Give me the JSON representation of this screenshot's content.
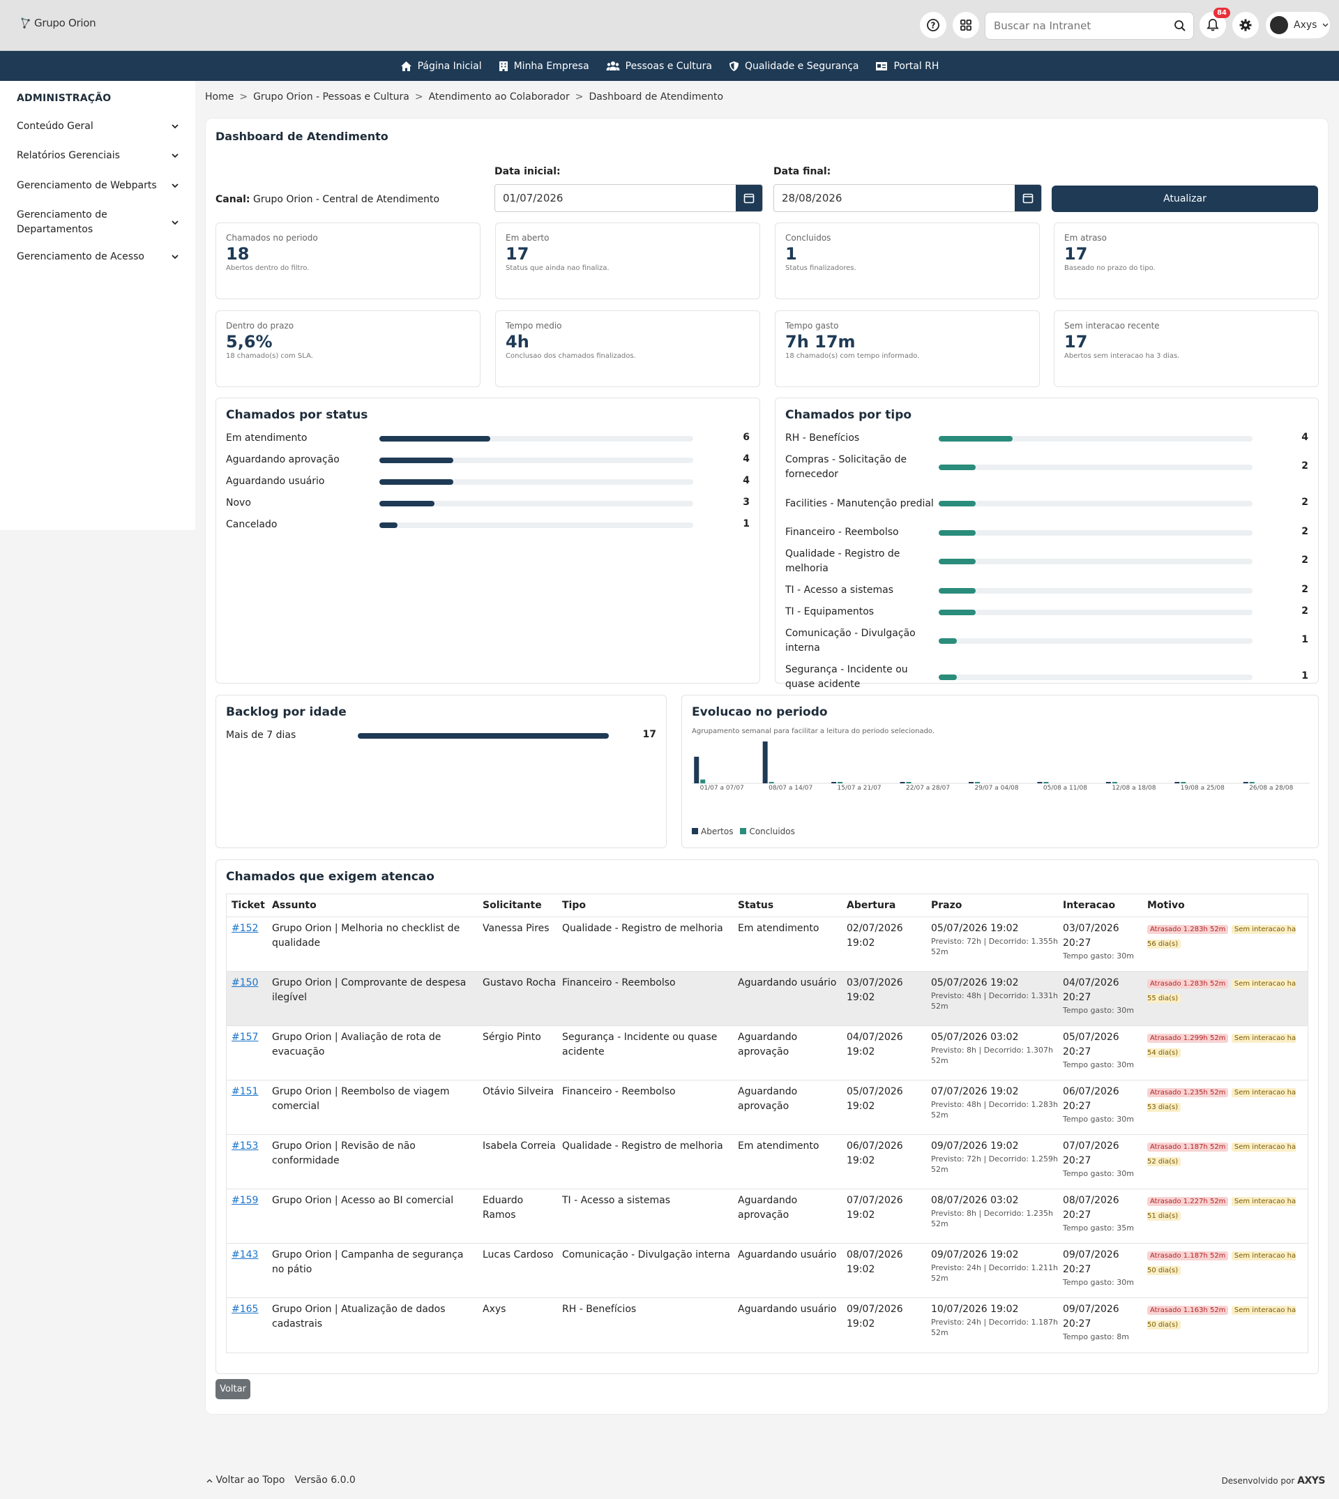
{
  "header": {
    "logo_text": "Grupo Orion",
    "search_placeholder": "Buscar na Intranet",
    "notifications_count": "84",
    "user_name": "Axys"
  },
  "nav": {
    "items": [
      {
        "label": "Página Inicial",
        "icon": "home-icon"
      },
      {
        "label": "Minha Empresa",
        "icon": "building-icon"
      },
      {
        "label": "Pessoas e Cultura",
        "icon": "people-icon"
      },
      {
        "label": "Qualidade e Segurança",
        "icon": "shield-icon"
      },
      {
        "label": "Portal RH",
        "icon": "id-card-icon"
      }
    ]
  },
  "sidebar": {
    "title": "ADMINISTRAÇÃO",
    "items": [
      {
        "label": "Conteúdo Geral"
      },
      {
        "label": "Relatórios Gerenciais"
      },
      {
        "label": "Gerenciamento de Webparts"
      },
      {
        "label": "Gerenciamento de Departamentos"
      },
      {
        "label": "Gerenciamento de Acesso"
      }
    ]
  },
  "breadcrumb": [
    "Home",
    "Grupo Orion - Pessoas e Cultura",
    "Atendimento ao Colaborador",
    "Dashboard de Atendimento"
  ],
  "page": {
    "title": "Dashboard de Atendimento",
    "canal_label": "Canal:",
    "canal_value": "Grupo Orion - Central de Atendimento",
    "data_inicial_label": "Data inicial:",
    "data_inicial_value": "01/07/2026",
    "data_final_label": "Data final:",
    "data_final_value": "28/08/2026",
    "atualizar_label": "Atualizar",
    "voltar_label": "Voltar"
  },
  "kpis": [
    {
      "label": "Chamados no periodo",
      "value": "18",
      "sub": "Abertos dentro do filtro."
    },
    {
      "label": "Em aberto",
      "value": "17",
      "sub": "Status que ainda nao finaliza."
    },
    {
      "label": "Concluidos",
      "value": "1",
      "sub": "Status finalizadores."
    },
    {
      "label": "Em atraso",
      "value": "17",
      "sub": "Baseado no prazo do tipo."
    },
    {
      "label": "Dentro do prazo",
      "value": "5,6%",
      "sub": "18 chamado(s) com SLA."
    },
    {
      "label": "Tempo medio",
      "value": "4h",
      "sub": "Conclusao dos chamados finalizados."
    },
    {
      "label": "Tempo gasto",
      "value": "7h 17m",
      "sub": "18 chamado(s) com tempo informado."
    },
    {
      "label": "Sem interacao recente",
      "value": "17",
      "sub": "Abertos sem interacao ha 3 dias."
    }
  ],
  "status_chart": {
    "title": "Chamados por status",
    "max": 17,
    "color": "#1e3a55",
    "rows": [
      {
        "label": "Em atendimento",
        "value": 6
      },
      {
        "label": "Aguardando aprovação",
        "value": 4
      },
      {
        "label": "Aguardando usuário",
        "value": 4
      },
      {
        "label": "Novo",
        "value": 3
      },
      {
        "label": "Cancelado",
        "value": 1
      }
    ]
  },
  "tipo_chart": {
    "title": "Chamados por tipo",
    "max": 17,
    "color": "#2a8c7b",
    "rows": [
      {
        "label": "RH - Benefícios",
        "value": 4
      },
      {
        "label": "Compras - Solicitação de fornecedor",
        "value": 2
      },
      {
        "label": "Facilities - Manutenção predial",
        "value": 2
      },
      {
        "label": "Financeiro - Reembolso",
        "value": 2
      },
      {
        "label": "Qualidade - Registro de melhoria",
        "value": 2
      },
      {
        "label": "TI - Acesso a sistemas",
        "value": 2
      },
      {
        "label": "TI - Equipamentos",
        "value": 2
      },
      {
        "label": "Comunicação - Divulgação interna",
        "value": 1
      },
      {
        "label": "Segurança - Incidente ou quase acidente",
        "value": 1
      }
    ]
  },
  "backlog_chart": {
    "title": "Backlog por idade",
    "max": 17,
    "rows": [
      {
        "label": "Mais de 7 dias",
        "value": 17
      }
    ]
  },
  "chart_data": {
    "type": "bar",
    "title": "Evolucao no periodo",
    "subtitle": "Agrupamento semanal para facilitar a leitura do periodo selecionado.",
    "categories": [
      "01/07 a 07/07",
      "08/07 a 14/07",
      "15/07 a 21/07",
      "22/07 a 28/07",
      "29/07 a 04/08",
      "05/08 a 11/08",
      "12/08 a 18/08",
      "19/08 a 25/08",
      "26/08 a 28/08"
    ],
    "series": [
      {
        "name": "Abertos",
        "color": "#1e3a55",
        "values": [
          7,
          11,
          0,
          0,
          0,
          0,
          0,
          0,
          0
        ]
      },
      {
        "name": "Concluidos",
        "color": "#2a8c7b",
        "values": [
          1,
          0,
          0,
          0,
          0,
          0,
          0,
          0,
          0
        ]
      }
    ],
    "ylim": [
      0,
      11
    ],
    "legend": "bottom-left"
  },
  "table": {
    "title": "Chamados que exigem atencao",
    "headers": [
      "Ticket",
      "Assunto",
      "Solicitante",
      "Tipo",
      "Status",
      "Abertura",
      "Prazo",
      "Interacao",
      "Motivo"
    ],
    "rows": [
      {
        "ticket": "#152",
        "assunto": "Grupo Orion | Melhoria no checklist de qualidade",
        "solicitante": "Vanessa Pires",
        "tipo": "Qualidade - Registro de melhoria",
        "status": "Em atendimento",
        "abertura": "02/07/2026 19:02",
        "prazo": "05/07/2026 19:02",
        "prazo_sub": "Previsto: 72h | Decorrido: 1.355h 52m",
        "interacao": "03/07/2026 20:27",
        "interacao_sub": "Tempo gasto: 30m",
        "atraso": "Atrasado 1.283h 52m",
        "sem_interacao": "Sem interacao ha 56 dia(s)"
      },
      {
        "ticket": "#150",
        "assunto": "Grupo Orion | Comprovante de despesa ilegível",
        "solicitante": "Gustavo Rocha",
        "tipo": "Financeiro - Reembolso",
        "status": "Aguardando usuário",
        "abertura": "03/07/2026 19:02",
        "prazo": "05/07/2026 19:02",
        "prazo_sub": "Previsto: 48h | Decorrido: 1.331h 52m",
        "interacao": "04/07/2026 20:27",
        "interacao_sub": "Tempo gasto: 30m",
        "atraso": "Atrasado 1.283h 52m",
        "sem_interacao": "Sem interacao ha 55 dia(s)"
      },
      {
        "ticket": "#157",
        "assunto": "Grupo Orion | Avaliação de rota de evacuação",
        "solicitante": "Sérgio Pinto",
        "tipo": "Segurança - Incidente ou quase acidente",
        "status": "Aguardando aprovação",
        "abertura": "04/07/2026 19:02",
        "prazo": "05/07/2026 03:02",
        "prazo_sub": "Previsto: 8h | Decorrido: 1.307h 52m",
        "interacao": "05/07/2026 20:27",
        "interacao_sub": "Tempo gasto: 30m",
        "atraso": "Atrasado 1.299h 52m",
        "sem_interacao": "Sem interacao ha 54 dia(s)"
      },
      {
        "ticket": "#151",
        "assunto": "Grupo Orion | Reembolso de viagem comercial",
        "solicitante": "Otávio Silveira",
        "tipo": "Financeiro - Reembolso",
        "status": "Aguardando aprovação",
        "abertura": "05/07/2026 19:02",
        "prazo": "07/07/2026 19:02",
        "prazo_sub": "Previsto: 48h | Decorrido: 1.283h 52m",
        "interacao": "06/07/2026 20:27",
        "interacao_sub": "Tempo gasto: 30m",
        "atraso": "Atrasado 1.235h 52m",
        "sem_interacao": "Sem interacao ha 53 dia(s)"
      },
      {
        "ticket": "#153",
        "assunto": "Grupo Orion | Revisão de não conformidade",
        "solicitante": "Isabela Correia",
        "tipo": "Qualidade - Registro de melhoria",
        "status": "Em atendimento",
        "abertura": "06/07/2026 19:02",
        "prazo": "09/07/2026 19:02",
        "prazo_sub": "Previsto: 72h | Decorrido: 1.259h 52m",
        "interacao": "07/07/2026 20:27",
        "interacao_sub": "Tempo gasto: 30m",
        "atraso": "Atrasado 1.187h 52m",
        "sem_interacao": "Sem interacao ha 52 dia(s)"
      },
      {
        "ticket": "#159",
        "assunto": "Grupo Orion | Acesso ao BI comercial",
        "solicitante": "Eduardo Ramos",
        "tipo": "TI - Acesso a sistemas",
        "status": "Aguardando aprovação",
        "abertura": "07/07/2026 19:02",
        "prazo": "08/07/2026 03:02",
        "prazo_sub": "Previsto: 8h | Decorrido: 1.235h 52m",
        "interacao": "08/07/2026 20:27",
        "interacao_sub": "Tempo gasto: 35m",
        "atraso": "Atrasado 1.227h 52m",
        "sem_interacao": "Sem interacao ha 51 dia(s)"
      },
      {
        "ticket": "#143",
        "assunto": "Grupo Orion | Campanha de segurança no pátio",
        "solicitante": "Lucas Cardoso",
        "tipo": "Comunicação - Divulgação interna",
        "status": "Aguardando usuário",
        "abertura": "08/07/2026 19:02",
        "prazo": "09/07/2026 19:02",
        "prazo_sub": "Previsto: 24h | Decorrido: 1.211h 52m",
        "interacao": "09/07/2026 20:27",
        "interacao_sub": "Tempo gasto: 30m",
        "atraso": "Atrasado 1.187h 52m",
        "sem_interacao": "Sem interacao ha 50 dia(s)"
      },
      {
        "ticket": "#165",
        "assunto": "Grupo Orion | Atualização de dados cadastrais",
        "solicitante": "Axys",
        "tipo": "RH - Benefícios",
        "status": "Aguardando usuário",
        "abertura": "09/07/2026 19:02",
        "prazo": "10/07/2026 19:02",
        "prazo_sub": "Previsto: 24h | Decorrido: 1.187h 52m",
        "interacao": "09/07/2026 20:27",
        "interacao_sub": "Tempo gasto: 8m",
        "atraso": "Atrasado 1.163h 52m",
        "sem_interacao": "Sem interacao ha 50 dia(s)"
      }
    ]
  },
  "footer": {
    "voltar_topo": "Voltar ao Topo",
    "versao": "Versão 6.0.0",
    "desenvolvido_por": "Desenvolvido por",
    "brand": "AXYS"
  }
}
